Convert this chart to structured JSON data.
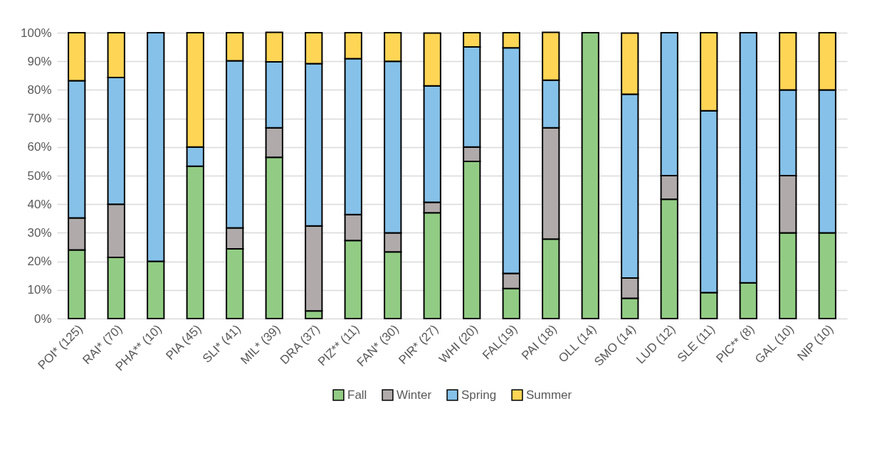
{
  "chart_data": {
    "type": "bar",
    "stacked": true,
    "categories": [
      "POI* (125)",
      "RAI* (70)",
      "PHA** (10)",
      "PIA (45)",
      "SLI* (41)",
      "MIL* (39)",
      "DRA (37)",
      "PIZ** (11)",
      "FAN* (30)",
      "PIR* (27)",
      "WHI (20)",
      "FAL(19)",
      "PAI (18)",
      "OLL (14)",
      "SMO (14)",
      "LUD (12)",
      "SLE (11)",
      "PIC** (8)",
      "GAL (10)",
      "NIP (10)"
    ],
    "series": [
      {
        "name": "Fall",
        "color": "#92cc84",
        "values": [
          24,
          21.4,
          20,
          53.3,
          24.4,
          56.4,
          2.7,
          27.3,
          23.3,
          37,
          55,
          10.5,
          27.8,
          100,
          7.1,
          41.7,
          9.1,
          12.5,
          30,
          30
        ]
      },
      {
        "name": "Winter",
        "color": "#b0aaaa",
        "values": [
          11.2,
          18.6,
          null,
          null,
          7.3,
          10.3,
          29.7,
          9.1,
          6.7,
          3.7,
          5,
          5.3,
          38.9,
          null,
          7.1,
          8.3,
          null,
          null,
          20,
          null
        ]
      },
      {
        "name": "Spring",
        "color": "#85c1e9",
        "values": [
          48,
          44.3,
          80,
          6.7,
          58.5,
          23.1,
          56.8,
          54.5,
          60,
          40.7,
          35,
          78.9,
          16.7,
          null,
          64.3,
          50,
          63.6,
          87.5,
          30,
          50
        ]
      },
      {
        "name": "Summer",
        "color": "#ffd555",
        "values": [
          16.8,
          15.7,
          null,
          40,
          9.8,
          10.3,
          10.8,
          9.1,
          10,
          18.5,
          5,
          5.3,
          16.7,
          null,
          21.4,
          null,
          27.3,
          null,
          20,
          20
        ]
      }
    ],
    "ylim": [
      0,
      100
    ],
    "yticks": [
      {
        "value": 0,
        "label": "0%"
      },
      {
        "value": 10,
        "label": "10%"
      },
      {
        "value": 20,
        "label": "20%"
      },
      {
        "value": 30,
        "label": "30%"
      },
      {
        "value": 40,
        "label": "40%"
      },
      {
        "value": 50,
        "label": "50%"
      },
      {
        "value": 60,
        "label": "60%"
      },
      {
        "value": 70,
        "label": "70%"
      },
      {
        "value": 80,
        "label": "80%"
      },
      {
        "value": 90,
        "label": "90%"
      },
      {
        "value": 100,
        "label": "100%"
      }
    ],
    "grid": "y",
    "legend": "bottom"
  }
}
